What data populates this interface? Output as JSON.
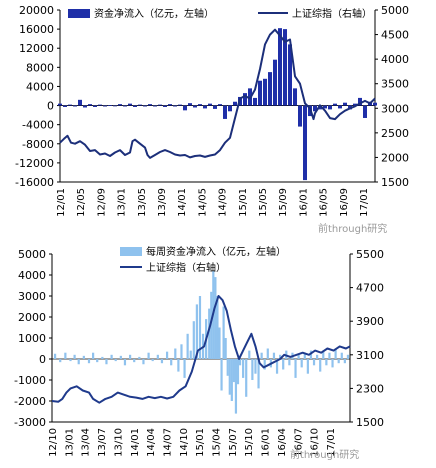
{
  "watermark": "前through研究",
  "chart_data": [
    {
      "type": "bar+line",
      "legend": {
        "bar": "资金净流入（亿元，左轴）",
        "line": "上证综指（右轴）",
        "placement": "top"
      },
      "left_axis": {
        "ticks": [
          20000,
          16000,
          12000,
          8000,
          4000,
          0,
          -4000,
          -8000,
          -12000,
          -16000
        ],
        "range": [
          -16000,
          20000
        ]
      },
      "right_axis": {
        "ticks": [
          5000,
          4500,
          4000,
          3500,
          3000,
          2500,
          2000,
          1500
        ],
        "range": [
          1500,
          5000
        ]
      },
      "x_ticks": [
        "12/01",
        "12/05",
        "12/09",
        "13/01",
        "13/05",
        "13/09",
        "14/01",
        "14/05",
        "14/09",
        "15/01",
        "15/05",
        "15/09",
        "16/01",
        "16/05",
        "16/09",
        "17/01"
      ],
      "x_range": [
        0,
        63
      ],
      "colors": {
        "bar": "#1f2fa8",
        "line": "#1c2f7a"
      },
      "bars": [
        [
          0,
          400
        ],
        [
          1,
          -300
        ],
        [
          2,
          200
        ],
        [
          3,
          -200
        ],
        [
          4,
          1200
        ],
        [
          5,
          -400
        ],
        [
          6,
          300
        ],
        [
          7,
          -300
        ],
        [
          8,
          200
        ],
        [
          9,
          -200
        ],
        [
          10,
          100
        ],
        [
          11,
          -100
        ],
        [
          12,
          300
        ],
        [
          13,
          -200
        ],
        [
          14,
          400
        ],
        [
          15,
          -300
        ],
        [
          16,
          200
        ],
        [
          17,
          -200
        ],
        [
          18,
          300
        ],
        [
          19,
          -200
        ],
        [
          20,
          200
        ],
        [
          21,
          -300
        ],
        [
          22,
          300
        ],
        [
          23,
          -200
        ],
        [
          24,
          200
        ],
        [
          25,
          -1000
        ],
        [
          26,
          500
        ],
        [
          27,
          -400
        ],
        [
          28,
          300
        ],
        [
          29,
          -600
        ],
        [
          30,
          400
        ],
        [
          31,
          -700
        ],
        [
          32,
          300
        ],
        [
          33,
          -2800
        ],
        [
          34,
          -1200
        ],
        [
          35,
          800
        ],
        [
          36,
          1800
        ],
        [
          37,
          2600
        ],
        [
          38,
          3600
        ],
        [
          39,
          1600
        ],
        [
          40,
          5200
        ],
        [
          41,
          5600
        ],
        [
          42,
          7000
        ],
        [
          43,
          9600
        ],
        [
          44,
          16200
        ],
        [
          45,
          16000
        ],
        [
          46,
          12800
        ],
        [
          47,
          3600
        ],
        [
          48,
          -4400
        ],
        [
          49,
          -15600
        ],
        [
          50,
          -2200
        ],
        [
          51,
          -1200
        ],
        [
          52,
          -800
        ],
        [
          53,
          -600
        ],
        [
          54,
          -800
        ],
        [
          55,
          400
        ],
        [
          56,
          -600
        ],
        [
          57,
          600
        ],
        [
          58,
          -800
        ],
        [
          59,
          400
        ],
        [
          60,
          1600
        ],
        [
          61,
          -2600
        ],
        [
          62,
          800
        ],
        [
          63,
          600
        ]
      ],
      "line": [
        [
          0,
          2300
        ],
        [
          0.8,
          2380
        ],
        [
          1.5,
          2440
        ],
        [
          2.2,
          2300
        ],
        [
          3,
          2280
        ],
        [
          4,
          2330
        ],
        [
          5,
          2260
        ],
        [
          6,
          2130
        ],
        [
          7,
          2150
        ],
        [
          8,
          2060
        ],
        [
          9,
          2080
        ],
        [
          10,
          2030
        ],
        [
          11,
          2100
        ],
        [
          12,
          2150
        ],
        [
          13,
          2050
        ],
        [
          14,
          2100
        ],
        [
          14.5,
          2330
        ],
        [
          15,
          2360
        ],
        [
          16,
          2280
        ],
        [
          17,
          2200
        ],
        [
          17.5,
          2050
        ],
        [
          18,
          1990
        ],
        [
          19,
          2050
        ],
        [
          20,
          2110
        ],
        [
          21,
          2150
        ],
        [
          22,
          2110
        ],
        [
          23,
          2060
        ],
        [
          24,
          2040
        ],
        [
          25,
          2050
        ],
        [
          26,
          2000
        ],
        [
          27,
          2030
        ],
        [
          28,
          2040
        ],
        [
          29,
          2010
        ],
        [
          30,
          2040
        ],
        [
          31,
          2060
        ],
        [
          32,
          2150
        ],
        [
          33,
          2300
        ],
        [
          34,
          2400
        ],
        [
          35,
          2800
        ],
        [
          36,
          3200
        ],
        [
          37,
          3250
        ],
        [
          38,
          3200
        ],
        [
          39,
          3380
        ],
        [
          40,
          3800
        ],
        [
          41,
          4300
        ],
        [
          42,
          4500
        ],
        [
          43,
          4600
        ],
        [
          44,
          4480
        ],
        [
          45,
          4350
        ],
        [
          46,
          4400
        ],
        [
          47,
          3650
        ],
        [
          48,
          3500
        ],
        [
          49,
          3100
        ],
        [
          50,
          3000
        ],
        [
          50.7,
          2780
        ],
        [
          51,
          2900
        ],
        [
          52,
          3060
        ],
        [
          53,
          2950
        ],
        [
          54,
          2800
        ],
        [
          55,
          2780
        ],
        [
          56,
          2880
        ],
        [
          57,
          2950
        ],
        [
          58,
          3000
        ],
        [
          59,
          3040
        ],
        [
          60,
          3100
        ],
        [
          61,
          3150
        ],
        [
          62,
          3100
        ],
        [
          63,
          3200
        ]
      ]
    },
    {
      "type": "bar+line",
      "legend": {
        "bar": "每周资金净流入（亿元，左轴）",
        "line": "上证综指（右轴）",
        "placement": "top"
      },
      "left_axis": {
        "ticks": [
          5000,
          4000,
          3000,
          2000,
          1000,
          0,
          -1000,
          -2000,
          -3000
        ],
        "range": [
          -3000,
          5000
        ]
      },
      "right_axis": {
        "ticks": [
          5500,
          4700,
          3900,
          3100,
          2300,
          1500
        ],
        "range": [
          1500,
          5500
        ]
      },
      "x_ticks": [
        "12/10",
        "13/01",
        "13/04",
        "13/07",
        "13/10",
        "14/01",
        "14/04",
        "14/07",
        "14/10",
        "15/01",
        "15/04",
        "15/07",
        "15/10",
        "16/01",
        "16/04",
        "16/07",
        "16/10",
        "17/01"
      ],
      "x_range": [
        0,
        290
      ],
      "colors": {
        "bar": "#8fc2ee",
        "line": "#1f3a8c"
      },
      "bars": [
        [
          3,
          250
        ],
        [
          8,
          -150
        ],
        [
          13,
          300
        ],
        [
          18,
          -100
        ],
        [
          22,
          200
        ],
        [
          26,
          -250
        ],
        [
          31,
          150
        ],
        [
          36,
          -200
        ],
        [
          40,
          300
        ],
        [
          44,
          -150
        ],
        [
          49,
          100
        ],
        [
          53,
          -250
        ],
        [
          58,
          200
        ],
        [
          62,
          -100
        ],
        [
          67,
          150
        ],
        [
          71,
          -300
        ],
        [
          76,
          200
        ],
        [
          80,
          -150
        ],
        [
          85,
          100
        ],
        [
          89,
          -250
        ],
        [
          94,
          300
        ],
        [
          98,
          -100
        ],
        [
          103,
          200
        ],
        [
          107,
          -200
        ],
        [
          112,
          350
        ],
        [
          116,
          -300
        ],
        [
          120,
          500
        ],
        [
          123,
          -600
        ],
        [
          126,
          700
        ],
        [
          129,
          -900
        ],
        [
          132,
          1200
        ],
        [
          135,
          400
        ],
        [
          138,
          1800
        ],
        [
          141,
          2600
        ],
        [
          144,
          3000
        ],
        [
          147,
          1200
        ],
        [
          150,
          1900
        ],
        [
          153,
          2400
        ],
        [
          155,
          3200
        ],
        [
          157,
          4200
        ],
        [
          159,
          3900
        ],
        [
          161,
          3000
        ],
        [
          163,
          1500
        ],
        [
          165,
          -1500
        ],
        [
          167,
          2500
        ],
        [
          169,
          1000
        ],
        [
          171,
          -800
        ],
        [
          173,
          -1700
        ],
        [
          175,
          -2000
        ],
        [
          177,
          -1100
        ],
        [
          179,
          -2600
        ],
        [
          181,
          -1200
        ],
        [
          183,
          -300
        ],
        [
          186,
          -900
        ],
        [
          189,
          -1800
        ],
        [
          192,
          400
        ],
        [
          195,
          -1000
        ],
        [
          198,
          -700
        ],
        [
          201,
          -1400
        ],
        [
          204,
          300
        ],
        [
          207,
          -500
        ],
        [
          210,
          500
        ],
        [
          213,
          -400
        ],
        [
          216,
          300
        ],
        [
          219,
          -700
        ],
        [
          222,
          200
        ],
        [
          225,
          -500
        ],
        [
          228,
          400
        ],
        [
          231,
          -300
        ],
        [
          234,
          300
        ],
        [
          237,
          -900
        ],
        [
          240,
          200
        ],
        [
          243,
          -400
        ],
        [
          246,
          300
        ],
        [
          249,
          -700
        ],
        [
          252,
          400
        ],
        [
          255,
          -300
        ],
        [
          258,
          200
        ],
        [
          261,
          -600
        ],
        [
          264,
          400
        ],
        [
          267,
          -300
        ],
        [
          270,
          300
        ],
        [
          273,
          -400
        ],
        [
          276,
          500
        ],
        [
          279,
          -200
        ],
        [
          282,
          300
        ],
        [
          285,
          -200
        ],
        [
          288,
          200
        ]
      ],
      "line": [
        [
          0,
          2000
        ],
        [
          6,
          1980
        ],
        [
          10,
          2050
        ],
        [
          14,
          2200
        ],
        [
          18,
          2300
        ],
        [
          24,
          2350
        ],
        [
          30,
          2250
        ],
        [
          36,
          2200
        ],
        [
          40,
          2050
        ],
        [
          46,
          1960
        ],
        [
          52,
          2050
        ],
        [
          58,
          2100
        ],
        [
          64,
          2200
        ],
        [
          70,
          2150
        ],
        [
          76,
          2100
        ],
        [
          82,
          2080
        ],
        [
          88,
          2050
        ],
        [
          94,
          2100
        ],
        [
          100,
          2070
        ],
        [
          106,
          2100
        ],
        [
          112,
          2060
        ],
        [
          118,
          2100
        ],
        [
          124,
          2250
        ],
        [
          130,
          2350
        ],
        [
          136,
          2700
        ],
        [
          142,
          3200
        ],
        [
          148,
          3300
        ],
        [
          154,
          3800
        ],
        [
          158,
          4200
        ],
        [
          162,
          4500
        ],
        [
          166,
          4400
        ],
        [
          170,
          4150
        ],
        [
          174,
          3700
        ],
        [
          178,
          3300
        ],
        [
          182,
          3000
        ],
        [
          186,
          3200
        ],
        [
          190,
          3400
        ],
        [
          194,
          3600
        ],
        [
          198,
          3300
        ],
        [
          202,
          2900
        ],
        [
          206,
          2800
        ],
        [
          210,
          2850
        ],
        [
          214,
          2900
        ],
        [
          218,
          2950
        ],
        [
          222,
          3000
        ],
        [
          226,
          3100
        ],
        [
          232,
          3050
        ],
        [
          238,
          3100
        ],
        [
          244,
          3150
        ],
        [
          250,
          3100
        ],
        [
          256,
          3200
        ],
        [
          262,
          3150
        ],
        [
          268,
          3250
        ],
        [
          274,
          3200
        ],
        [
          280,
          3300
        ],
        [
          286,
          3250
        ],
        [
          290,
          3300
        ]
      ]
    }
  ]
}
